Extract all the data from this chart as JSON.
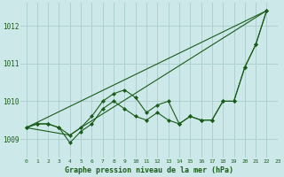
{
  "title": "Graphe pression niveau de la mer (hPa)",
  "background_color": "#cce8e8",
  "grid_color": "#aacccc",
  "line_color": "#1a5c1a",
  "xlim": [
    -0.5,
    23
  ],
  "ylim": [
    1008.5,
    1012.6
  ],
  "yticks": [
    1009,
    1010,
    1011,
    1012
  ],
  "xtick_labels": [
    "0",
    "1",
    "2",
    "3",
    "4",
    "5",
    "6",
    "7",
    "8",
    "9",
    "10",
    "11",
    "12",
    "13",
    "14",
    "15",
    "16",
    "17",
    "18",
    "19",
    "20",
    "21",
    "22",
    "23"
  ],
  "xtick_positions": [
    0,
    1,
    2,
    3,
    4,
    5,
    6,
    7,
    8,
    9,
    10,
    11,
    12,
    13,
    14,
    15,
    16,
    17,
    18,
    19,
    20,
    21,
    22,
    23
  ],
  "series": [
    {
      "x": [
        0,
        1,
        2,
        3,
        4,
        5,
        6,
        7,
        8,
        9,
        10,
        11,
        12,
        13,
        14,
        15,
        16,
        17,
        18,
        19,
        20,
        21,
        22
      ],
      "y": [
        1009.3,
        1009.4,
        1009.4,
        1009.3,
        1008.9,
        1009.2,
        1009.4,
        1009.8,
        1010.0,
        1009.8,
        1009.6,
        1009.5,
        1009.7,
        1009.5,
        1009.4,
        1009.6,
        1009.5,
        1009.5,
        1010.0,
        1010.0,
        1010.9,
        1011.5,
        1012.4
      ],
      "marker": true
    },
    {
      "x": [
        0,
        1,
        2,
        3,
        4,
        5,
        6,
        7,
        8,
        9,
        10,
        11,
        12,
        13,
        14,
        15,
        16,
        17,
        18,
        19,
        20,
        21,
        22
      ],
      "y": [
        1009.3,
        1009.4,
        1009.4,
        1009.3,
        1009.1,
        1009.3,
        1009.6,
        1010.0,
        1010.2,
        1010.3,
        1010.1,
        1009.7,
        1009.9,
        1010.0,
        1009.4,
        1009.6,
        1009.5,
        1009.5,
        1010.0,
        1010.0,
        1010.9,
        1011.5,
        1012.4
      ],
      "marker": true
    },
    {
      "x": [
        0,
        22
      ],
      "y": [
        1009.3,
        1012.4
      ],
      "marker": false
    },
    {
      "x": [
        0,
        4,
        5,
        22
      ],
      "y": [
        1009.3,
        1009.1,
        1009.3,
        1012.4
      ],
      "marker": false
    }
  ]
}
